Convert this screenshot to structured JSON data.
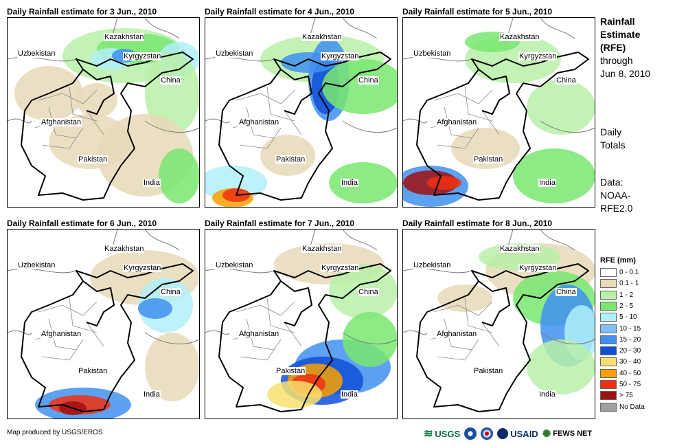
{
  "panels": [
    {
      "title": "Daily Rainfall estimate for 3 Jun., 2010"
    },
    {
      "title": "Daily Rainfall estimate for 4 Jun., 2010"
    },
    {
      "title": "Daily Rainfall estimate for 5 Jun., 2010"
    },
    {
      "title": "Daily Rainfall estimate for 6 Jun., 2010"
    },
    {
      "title": "Daily Rainfall estimate for 7 Jun., 2010"
    },
    {
      "title": "Daily Rainfall estimate for 8 Jun., 2010"
    }
  ],
  "country_labels": {
    "kazakhstan": "Kazakhstan",
    "uzbekistan": "Uzbekistan",
    "kyrgyzstan": "Kyrgyzstan",
    "china": "China",
    "afghanistan": "Afghanistan",
    "pakistan": "Pakistan",
    "india": "India"
  },
  "sidebar": {
    "title_line1": "Rainfall",
    "title_line2": "Estimate",
    "title_line3": "(RFE)",
    "through": "through",
    "date": "Jun 8, 2010",
    "daily1": "Daily",
    "daily2": "Totals",
    "data1": "Data:",
    "data2": "NOAA-",
    "data3": "RFE2.0"
  },
  "legend": {
    "title": "RFE (mm)",
    "items": [
      {
        "label": "0 - 0.1",
        "color": "#ffffff"
      },
      {
        "label": "0.1 - 1",
        "color": "#e8d9b8"
      },
      {
        "label": "1 - 2",
        "color": "#b8f0a8"
      },
      {
        "label": "2 - 5",
        "color": "#78e870"
      },
      {
        "label": "5 - 10",
        "color": "#b0f0f8"
      },
      {
        "label": "10 - 15",
        "color": "#80c0f8"
      },
      {
        "label": "15 - 20",
        "color": "#4090f0"
      },
      {
        "label": "20 - 30",
        "color": "#1050d8"
      },
      {
        "label": "30 - 40",
        "color": "#f8e070"
      },
      {
        "label": "40 - 50",
        "color": "#f8a000"
      },
      {
        "label": "50 - 75",
        "color": "#f03010"
      },
      {
        "label": "> 75",
        "color": "#a01010"
      },
      {
        "label": "No Data",
        "color": "#a0a0a0"
      }
    ]
  },
  "credit": "Map produced by USGS/EROS",
  "logos": {
    "usgs": "USGS",
    "usaid": "USAID",
    "fews": "FEWS NET"
  }
}
